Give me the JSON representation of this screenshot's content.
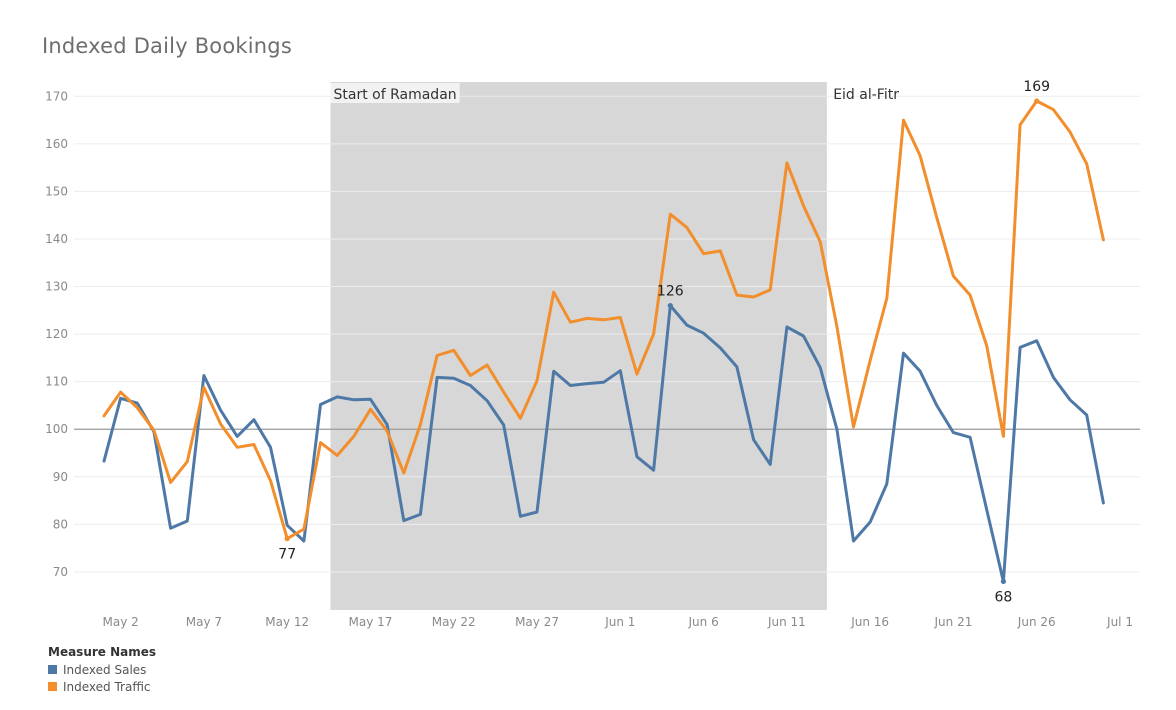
{
  "title": "Indexed Daily Bookings",
  "chart_data": {
    "type": "line",
    "title": "Indexed Daily Bookings",
    "xlabel": "",
    "ylabel": "",
    "ylim": [
      62,
      173
    ],
    "yticks": [
      70,
      80,
      90,
      100,
      110,
      120,
      130,
      140,
      150,
      160,
      170
    ],
    "x_range": [
      -1.8,
      62.2
    ],
    "x_ticks": [
      {
        "label": "May 2",
        "day": 1
      },
      {
        "label": "May 7",
        "day": 6
      },
      {
        "label": "May 12",
        "day": 11
      },
      {
        "label": "May 17",
        "day": 16
      },
      {
        "label": "May 22",
        "day": 21
      },
      {
        "label": "May 27",
        "day": 26
      },
      {
        "label": "Jun 1",
        "day": 31
      },
      {
        "label": "Jun 6",
        "day": 36
      },
      {
        "label": "Jun 11",
        "day": 41
      },
      {
        "label": "Jun 16",
        "day": 46
      },
      {
        "label": "Jun 21",
        "day": 51
      },
      {
        "label": "Jun 26",
        "day": 56
      },
      {
        "label": "Jul 1",
        "day": 61
      }
    ],
    "x_start_day": 0,
    "x_start_label": "May 1",
    "reference_line": 100,
    "shaded_regions": [
      {
        "label": "Start of Ramadan",
        "from": 13.6,
        "to": 43.4
      }
    ],
    "annotations": [
      {
        "text": "Start of Ramadan",
        "day": 13.6,
        "align": "left",
        "boxed": true
      },
      {
        "text": "Eid al-Fitr",
        "day": 43.6,
        "align": "left",
        "boxed": false
      }
    ],
    "data_labels": [
      {
        "text": "77",
        "series": "Indexed Traffic",
        "day": 11,
        "value": 77,
        "position": "below"
      },
      {
        "text": "126",
        "series": "Indexed Sales",
        "day": 34,
        "value": 126,
        "position": "above"
      },
      {
        "text": "68",
        "series": "Indexed Sales",
        "day": 54,
        "value": 68,
        "position": "below"
      },
      {
        "text": "169",
        "series": "Indexed Traffic",
        "day": 56,
        "value": 169,
        "position": "above"
      }
    ],
    "series": [
      {
        "name": "Indexed Sales",
        "color": "#4e79a7",
        "values": [
          93.3,
          106.5,
          105.5,
          99.5,
          79.2,
          80.7,
          111.3,
          104.0,
          98.5,
          102.0,
          96.2,
          79.8,
          76.5,
          105.2,
          106.8,
          106.2,
          106.3,
          101.0,
          80.8,
          82.1,
          110.9,
          110.7,
          109.2,
          106.0,
          100.9,
          81.7,
          82.6,
          112.2,
          109.2,
          109.6,
          109.9,
          112.3,
          94.2,
          91.4,
          126.0,
          121.9,
          120.2,
          117.1,
          113.1,
          97.8,
          92.6,
          121.5,
          119.6,
          113.0,
          100.0,
          76.5,
          80.5,
          88.5,
          116.0,
          112.2,
          105.0,
          99.3,
          98.3,
          83.0,
          68.0,
          117.2,
          118.6,
          110.9,
          106.2,
          103.0,
          84.5
        ]
      },
      {
        "name": "Indexed Traffic",
        "color": "#f28e2b",
        "values": [
          102.8,
          107.8,
          104.5,
          99.8,
          88.8,
          93.2,
          108.8,
          101.1,
          96.2,
          96.8,
          89.2,
          77.0,
          79.0,
          97.2,
          94.5,
          98.5,
          104.2,
          99.6,
          90.8,
          101.0,
          115.5,
          116.6,
          111.3,
          113.5,
          107.8,
          102.3,
          110.2,
          128.8,
          122.5,
          123.3,
          123.0,
          123.5,
          111.6,
          120.0,
          145.2,
          142.4,
          136.9,
          137.5,
          128.2,
          127.8,
          129.3,
          156.0,
          147.0,
          139.4,
          121.6,
          100.5,
          114.5,
          127.5,
          165.0,
          157.5,
          144.5,
          132.2,
          128.2,
          117.5,
          98.5,
          164.0,
          169.0,
          167.2,
          162.5,
          155.8,
          139.8
        ]
      }
    ],
    "legend": {
      "title": "Measure Names",
      "position": "bottom-left"
    }
  },
  "legend": {
    "title": "Measure Names",
    "items": [
      {
        "label": "Indexed Sales",
        "color": "#4e79a7"
      },
      {
        "label": "Indexed Traffic",
        "color": "#f28e2b"
      }
    ]
  }
}
